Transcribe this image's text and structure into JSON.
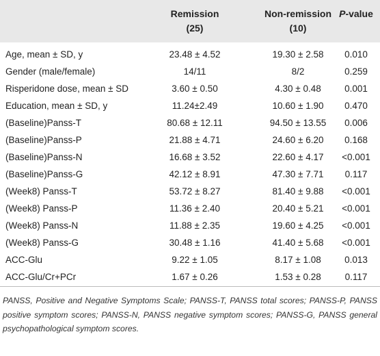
{
  "table": {
    "header": [
      {
        "lines": [
          "Remission",
          "(25)"
        ]
      },
      {
        "lines": [
          "Non-remission",
          "(10)"
        ]
      },
      {
        "italic": "P",
        "rest": "-value"
      }
    ],
    "rows": [
      [
        "Age, mean ± SD, y",
        "23.48 ± 4.52",
        "19.30 ± 2.58",
        "0.010"
      ],
      [
        "Gender (male/female)",
        "14/11",
        "8/2",
        "0.259"
      ],
      [
        "Risperidone dose, mean ± SD",
        "3.60 ± 0.50",
        "4.30 ± 0.48",
        "0.001"
      ],
      [
        "Education, mean ± SD, y",
        "11.24±2.49",
        "10.60 ± 1.90",
        "0.470"
      ],
      [
        "(Baseline)Panss-T",
        "80.68 ± 12.11",
        "94.50 ± 13.55",
        "0.006"
      ],
      [
        "(Baseline)Panss-P",
        "21.88 ± 4.71",
        "24.60 ± 6.20",
        "0.168"
      ],
      [
        "(Baseline)Panss-N",
        "16.68 ± 3.52",
        "22.60 ± 4.17",
        "<0.001"
      ],
      [
        "(Baseline)Panss-G",
        "42.12 ± 8.91",
        "47.30 ± 7.71",
        "0.117"
      ],
      [
        "(Week8) Panss-T",
        "53.72 ± 8.27",
        "81.40 ± 9.88",
        "<0.001"
      ],
      [
        "(Week8) Panss-P",
        "11.36 ± 2.40",
        "20.40 ± 5.21",
        "<0.001"
      ],
      [
        "(Week8) Panss-N",
        "11.88 ± 2.35",
        "19.60 ± 4.25",
        "<0.001"
      ],
      [
        "(Week8) Panss-G",
        "30.48 ± 1.16",
        "41.40 ± 5.68",
        "<0.001"
      ],
      [
        "ACC-Glu",
        "9.22 ± 1.05",
        "8.17 ± 1.08",
        "0.013"
      ],
      [
        "ACC-Glu/Cr+PCr",
        "1.67 ± 0.26",
        "1.53 ± 0.28",
        "0.117"
      ]
    ],
    "footnote": "PANSS, Positive and Negative Symptoms Scale; PANSS-T, PANSS total scores; PANSS-P, PANSS positive symptom scores; PANSS-N, PANSS negative symptom scores; PANSS-G, PANSS general psychopathological symptom scores."
  }
}
